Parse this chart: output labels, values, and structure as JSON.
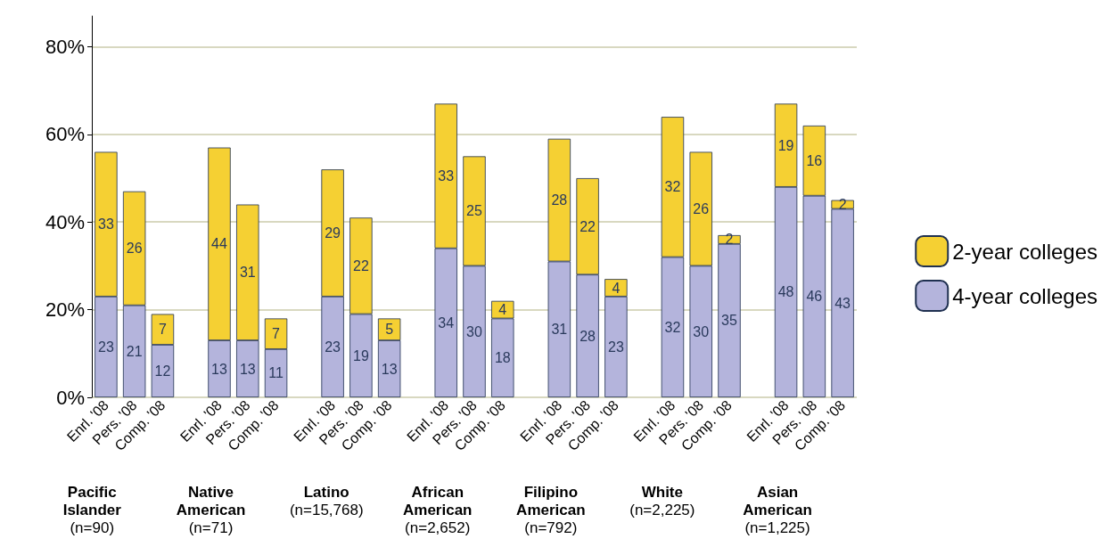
{
  "chart_data": {
    "type": "bar",
    "stacked": true,
    "data_labels": true,
    "grid": "y",
    "legend": "right",
    "categories": [
      "Enrl. '08",
      "Pers. '08",
      "Comp. '08",
      null,
      "Enrl. '08",
      "Pers. '08",
      "Comp. '08",
      null,
      "Enrl. '08",
      "Pers. '08",
      "Comp. '08",
      null,
      "Enrl. '08",
      "Pers. '08",
      "Comp. '08",
      null,
      "Enrl. '08",
      "Pers. '08",
      "Comp. '08",
      null,
      "Enrl. '08",
      "Pers. '08",
      "Comp. '08",
      null,
      "Enrl. '08",
      "Pers. '08",
      "Comp. '08"
    ],
    "series": [
      {
        "name": "4-year colleges",
        "color": "#b4b4dc",
        "values": [
          23,
          21,
          12,
          null,
          13,
          13,
          11,
          null,
          23,
          19,
          13,
          null,
          34,
          30,
          18,
          null,
          31,
          28,
          23,
          null,
          32,
          30,
          35,
          null,
          48,
          46,
          43
        ]
      },
      {
        "name": "2-year colleges",
        "color": "#f5d033",
        "values": [
          33,
          26,
          7,
          null,
          44,
          31,
          7,
          null,
          29,
          22,
          5,
          null,
          33,
          25,
          4,
          null,
          28,
          22,
          4,
          null,
          32,
          26,
          2,
          null,
          19,
          16,
          2
        ]
      }
    ],
    "ylim": [
      0,
      87
    ],
    "yticks": [
      {
        "value": 0,
        "label": "0%"
      },
      {
        "value": 20,
        "label": "20%"
      },
      {
        "value": 40,
        "label": "40%"
      },
      {
        "value": 60,
        "label": "60%"
      },
      {
        "value": 80,
        "label": "80%"
      }
    ],
    "annotations": [
      "Pacific\nIslander\n(n=90)",
      "Native\nAmerican\n(n=71)",
      "Latino\n(n=15,768)",
      "African\nAmerican\n(n=2,652)",
      "Filipino\nAmerican\n(n=792)",
      "White\n(n=2,225)",
      "Asian\nAmerican\n(n=1,225)"
    ]
  }
}
